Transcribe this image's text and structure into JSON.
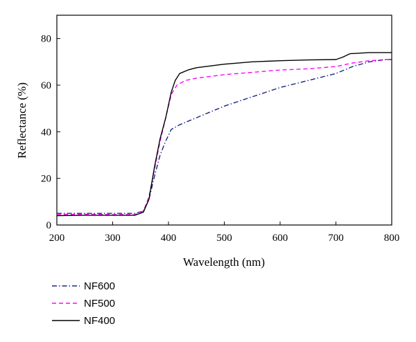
{
  "chart_data": {
    "type": "line",
    "title": "",
    "xlabel": "Wavelength (nm)",
    "ylabel": "Reflectance (%)",
    "xlim": [
      200,
      800
    ],
    "ylim": [
      0,
      90
    ],
    "xticks": [
      200,
      300,
      400,
      500,
      600,
      700,
      800
    ],
    "yticks": [
      0,
      20,
      40,
      60,
      80
    ],
    "grid": false,
    "legend_position": "bottom-left, below plot",
    "series": [
      {
        "name": "NF600",
        "color": "#1a237e",
        "dash": "dash-dot",
        "x": [
          200,
          250,
          300,
          340,
          355,
          365,
          375,
          385,
          395,
          405,
          420,
          450,
          500,
          550,
          600,
          650,
          700,
          730,
          760,
          790,
          800
        ],
        "y": [
          5,
          5,
          5,
          5,
          6,
          11,
          21,
          30,
          36,
          41,
          43,
          46,
          51,
          55,
          59,
          62,
          65,
          68,
          70,
          71,
          71
        ]
      },
      {
        "name": "NF500",
        "color": "#ff00ff",
        "dash": "dashed",
        "x": [
          200,
          250,
          300,
          340,
          355,
          365,
          375,
          385,
          395,
          405,
          415,
          430,
          450,
          500,
          550,
          600,
          650,
          700,
          730,
          760,
          790,
          800
        ],
        "y": [
          4.5,
          4.6,
          4.5,
          4.5,
          6,
          12,
          24,
          36,
          46,
          56,
          60,
          62,
          63,
          64.5,
          65.5,
          66.5,
          67,
          68,
          69.5,
          70.5,
          71,
          71
        ]
      },
      {
        "name": "NF400",
        "color": "#000000",
        "dash": "solid",
        "x": [
          200,
          250,
          300,
          340,
          355,
          365,
          375,
          385,
          395,
          405,
          412,
          420,
          435,
          450,
          500,
          550,
          600,
          650,
          700,
          712,
          725,
          760,
          800
        ],
        "y": [
          4,
          4.2,
          4.2,
          4.2,
          5.5,
          11,
          25,
          37,
          46,
          57,
          62,
          65,
          66.5,
          67.5,
          69,
          70,
          70.5,
          70.8,
          71,
          72,
          73.5,
          74,
          74
        ]
      }
    ]
  }
}
